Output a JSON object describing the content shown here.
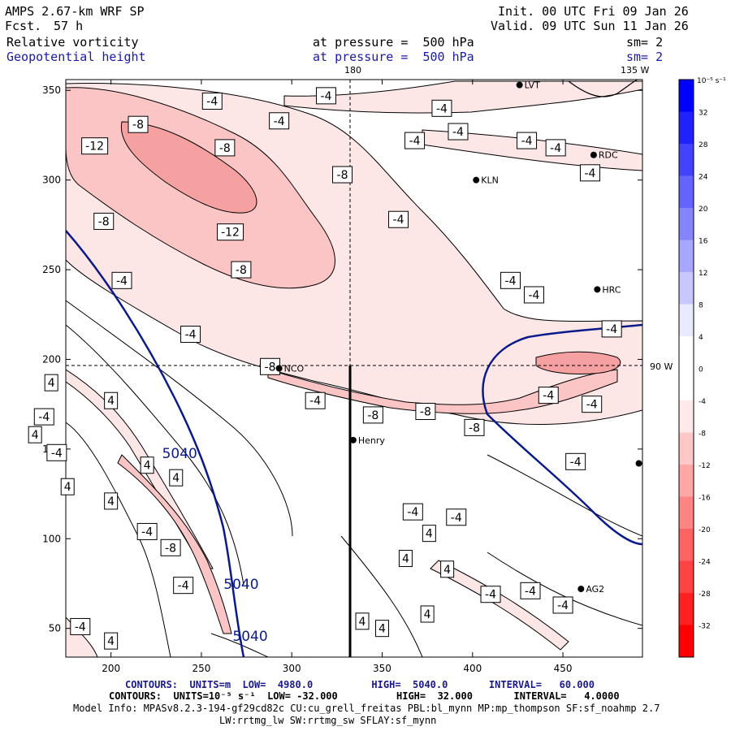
{
  "header": {
    "model_title": "AMPS 2.67-km WRF SP",
    "fcst_label": "Fcst.",
    "fcst_value": "57 h",
    "init": "Init. 00 UTC Fri 09 Jan 26",
    "valid": "Valid. 09 UTC Sun 11 Jan 26",
    "field1": "Relative vorticity",
    "field1_level": "at pressure =  500 hPa",
    "field1_sm": "sm= 2",
    "field2": "Geopotential height",
    "field2_level": "at pressure =  500 hPa",
    "field2_sm": "sm= 2"
  },
  "colors": {
    "contour_line": "#000000",
    "height_contour": "#0a1a8a",
    "neg_fill_1": "#fde6e6",
    "neg_fill_2": "#fbc5c5",
    "neg_fill_3": "#f6a1a1",
    "pos_max": "#0000ff",
    "neg_max": "#ff0000"
  },
  "chart_data": {
    "type": "contour",
    "x_ticks": [
      "200",
      "250",
      "300",
      "350",
      "400",
      "450"
    ],
    "y_ticks": [
      "50",
      "100",
      "150",
      "200",
      "250",
      "300",
      "350"
    ],
    "xlim": [
      175,
      494
    ],
    "ylim": [
      34,
      356
    ],
    "grid_line_labels": {
      "lon_180": "180",
      "lon_135w": "135 W",
      "lat_90s": "90 W"
    },
    "stations": [
      {
        "name": "LVT",
        "x": 426,
        "y": 353
      },
      {
        "name": "RDC",
        "x": 467,
        "y": 314
      },
      {
        "name": "KLN",
        "x": 402,
        "y": 300
      },
      {
        "name": "HRC",
        "x": 469,
        "y": 239
      },
      {
        "name": "NCO",
        "x": 293,
        "y": 195
      },
      {
        "name": "Henry",
        "x": 334,
        "y": 155
      },
      {
        "name": "AG2",
        "x": 460,
        "y": 72
      },
      {
        "name": "",
        "x": 492,
        "y": 142
      }
    ],
    "height_contours": {
      "levels": [
        4980,
        5040
      ],
      "labels": [
        "5040",
        "5040",
        "5040"
      ]
    },
    "vorticity_labels": [
      {
        "v": "-8",
        "x": 215,
        "y": 331
      },
      {
        "v": "-4",
        "x": 293,
        "y": 333
      },
      {
        "v": "-4",
        "x": 256,
        "y": 344
      },
      {
        "v": "-4",
        "x": 319,
        "y": 347
      },
      {
        "v": "-4",
        "x": 383,
        "y": 340
      },
      {
        "v": "-4",
        "x": 368,
        "y": 322
      },
      {
        "v": "-4",
        "x": 392,
        "y": 327
      },
      {
        "v": "-4",
        "x": 430,
        "y": 322
      },
      {
        "v": "-4",
        "x": 446,
        "y": 318
      },
      {
        "v": "-12",
        "x": 191,
        "y": 319
      },
      {
        "v": "-8",
        "x": 263,
        "y": 318
      },
      {
        "v": "-8",
        "x": 328,
        "y": 303
      },
      {
        "v": "-4",
        "x": 465,
        "y": 304
      },
      {
        "v": "-8",
        "x": 196,
        "y": 277
      },
      {
        "v": "-12",
        "x": 266,
        "y": 271
      },
      {
        "v": "-4",
        "x": 359,
        "y": 278
      },
      {
        "v": "-8",
        "x": 272,
        "y": 250
      },
      {
        "v": "-4",
        "x": 206,
        "y": 244
      },
      {
        "v": "-4",
        "x": 421,
        "y": 244
      },
      {
        "v": "-4",
        "x": 477,
        "y": 217
      },
      {
        "v": "-4",
        "x": 434,
        "y": 236
      },
      {
        "v": "-4",
        "x": 244,
        "y": 214
      },
      {
        "v": "-8",
        "x": 288,
        "y": 196
      },
      {
        "v": "-4",
        "x": 313,
        "y": 177
      },
      {
        "v": "-8",
        "x": 345,
        "y": 169
      },
      {
        "v": "-8",
        "x": 374,
        "y": 171
      },
      {
        "v": "-8",
        "x": 401,
        "y": 162
      },
      {
        "v": "-4",
        "x": 466,
        "y": 175
      },
      {
        "v": "4",
        "x": 167,
        "y": 187
      },
      {
        "v": "4",
        "x": 200,
        "y": 177
      },
      {
        "v": "-4",
        "x": 163,
        "y": 168
      },
      {
        "v": "4",
        "x": 158,
        "y": 158
      },
      {
        "v": "-4",
        "x": 170,
        "y": 148
      },
      {
        "v": "4",
        "x": 220,
        "y": 141
      },
      {
        "v": "4",
        "x": 176,
        "y": 129
      },
      {
        "v": "4",
        "x": 236,
        "y": 134
      },
      {
        "v": "4",
        "x": 200,
        "y": 121
      },
      {
        "v": "-4",
        "x": 220,
        "y": 104
      },
      {
        "v": "-8",
        "x": 233,
        "y": 95
      },
      {
        "v": "-4",
        "x": 240,
        "y": 74
      },
      {
        "v": "-4",
        "x": 367,
        "y": 115
      },
      {
        "v": "-4",
        "x": 391,
        "y": 112
      },
      {
        "v": "4",
        "x": 363,
        "y": 89
      },
      {
        "v": "4",
        "x": 376,
        "y": 103
      },
      {
        "v": "-4",
        "x": 457,
        "y": 143
      },
      {
        "v": "-4",
        "x": 442,
        "y": 180
      },
      {
        "v": "4",
        "x": 386,
        "y": 83
      },
      {
        "v": "-4",
        "x": 410,
        "y": 69
      },
      {
        "v": "-4",
        "x": 432,
        "y": 71
      },
      {
        "v": "-4",
        "x": 450,
        "y": 63
      },
      {
        "v": "4",
        "x": 375,
        "y": 58
      },
      {
        "v": "4",
        "x": 339,
        "y": 54
      },
      {
        "v": "4",
        "x": 350,
        "y": 50
      },
      {
        "v": "-4",
        "x": 183,
        "y": 51
      },
      {
        "v": "4",
        "x": 200,
        "y": 43
      }
    ]
  },
  "colorbar": {
    "unit": "10⁻⁵ s⁻¹",
    "tick_labels": [
      "32",
      "28",
      "24",
      "20",
      "16",
      "12",
      "8",
      "4",
      "0",
      "-4",
      "-8",
      "-12",
      "-16",
      "-20",
      "-24",
      "-28",
      "-32"
    ],
    "levels_count": 17
  },
  "footer": {
    "line1": "CONTOURS:  UNITS=m  LOW=  4980.0          HIGH=  5040.0       INTERVAL=   60.000",
    "line2": "CONTOURS:  UNITS=10⁻⁵ s⁻¹  LOW= -32.000          HIGH=  32.000       INTERVAL=   4.0000",
    "line3": "Model Info: MPASv8.2.3-194-gf29cd82c CU:cu_grell_freitas PBL:bl_mynn MP:mp_thompson SF:sf_noahmp 2.7",
    "line4": "LW:rrtmg_lw SW:rrtmg_sw SFLAY:sf_mynn"
  }
}
